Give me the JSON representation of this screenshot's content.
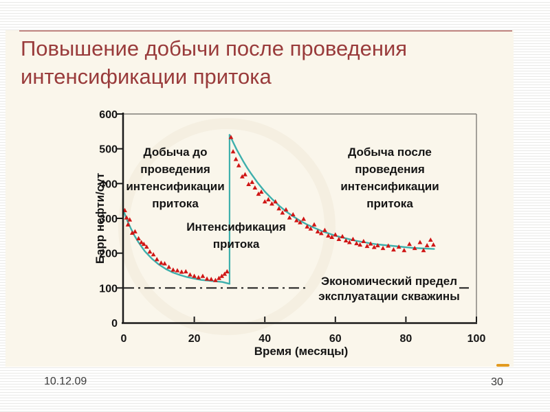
{
  "slide": {
    "title": "Повышение добычи после проведения интенсификации притока",
    "footer_date": "10.12.09",
    "page_number": "30"
  },
  "colors": {
    "title_maroon": "#993b3b",
    "slide_background": "#faf6eb",
    "trend_teal": "#3dafac",
    "marker_red": "#cf1515",
    "axis_black": "#1a1a1a",
    "box_gray": "#807d78",
    "orange_marker": "#e29a20"
  },
  "chart_data": {
    "type": "scatter",
    "title": "",
    "xlabel": "Время (месяцы)",
    "ylabel": "Барр нефти/сут",
    "xlim": [
      0,
      100
    ],
    "ylim": [
      0,
      600
    ],
    "x_ticks": [
      0,
      20,
      40,
      60,
      80,
      100
    ],
    "y_ticks": [
      0,
      100,
      200,
      300,
      400,
      500,
      600
    ],
    "grid": false,
    "legend": "none",
    "intervention_month": 30,
    "intervention_jump": {
      "from_value": 112,
      "to_value": 540
    },
    "economic_limit_value": 100,
    "annotations": {
      "before": "Добыча до\nпроведения\nинтенсификации\nпритока",
      "after": "Добыча после\nпроведения\nинтенсификации\nпритока",
      "intensification": "Интенсификация\nпритока",
      "economic_limit": "Экономический предел\nэксплуатации скважины"
    },
    "series": [
      {
        "name": "production-before-intensification",
        "marker": "triangle",
        "color": "#cf1515",
        "points": [
          [
            0.3,
            323
          ],
          [
            0.8,
            302
          ],
          [
            1.2,
            282
          ],
          [
            1.7,
            296
          ],
          [
            2.4,
            258
          ],
          [
            3.2,
            262
          ],
          [
            4.2,
            242
          ],
          [
            5.0,
            231
          ],
          [
            5.7,
            226
          ],
          [
            6.5,
            218
          ],
          [
            7.4,
            204
          ],
          [
            8.4,
            196
          ],
          [
            9.4,
            182
          ],
          [
            10.6,
            172
          ],
          [
            11.6,
            170
          ],
          [
            12.8,
            160
          ],
          [
            14.0,
            152
          ],
          [
            15.2,
            150
          ],
          [
            16.4,
            146
          ],
          [
            17.6,
            147
          ],
          [
            18.8,
            138
          ],
          [
            20.0,
            134
          ],
          [
            21.2,
            130
          ],
          [
            22.4,
            134
          ],
          [
            23.6,
            126
          ],
          [
            24.8,
            125
          ],
          [
            26.0,
            122
          ],
          [
            27.0,
            128
          ],
          [
            27.8,
            134
          ],
          [
            28.6,
            140
          ],
          [
            29.3,
            147
          ]
        ]
      },
      {
        "name": "production-after-intensification",
        "marker": "triangle",
        "color": "#cf1515",
        "points": [
          [
            30.4,
            533
          ],
          [
            31.0,
            492
          ],
          [
            31.8,
            470
          ],
          [
            32.6,
            452
          ],
          [
            33.6,
            420
          ],
          [
            34.4,
            426
          ],
          [
            35.4,
            398
          ],
          [
            36.4,
            404
          ],
          [
            37.2,
            388
          ],
          [
            38.2,
            370
          ],
          [
            39.0,
            376
          ],
          [
            40.0,
            348
          ],
          [
            41.0,
            354
          ],
          [
            42.0,
            342
          ],
          [
            43.0,
            348
          ],
          [
            44.0,
            328
          ],
          [
            45.0,
            316
          ],
          [
            46.0,
            325
          ],
          [
            47.0,
            302
          ],
          [
            48.0,
            311
          ],
          [
            49.0,
            294
          ],
          [
            50.0,
            288
          ],
          [
            51.0,
            298
          ],
          [
            52.0,
            276
          ],
          [
            53.0,
            270
          ],
          [
            54.0,
            282
          ],
          [
            55.0,
            262
          ],
          [
            56.0,
            257
          ],
          [
            57.0,
            266
          ],
          [
            58.0,
            250
          ],
          [
            59.0,
            246
          ],
          [
            60.0,
            253
          ],
          [
            61.0,
            240
          ],
          [
            62.0,
            248
          ],
          [
            63.0,
            236
          ],
          [
            64.0,
            231
          ],
          [
            65.0,
            240
          ],
          [
            66.0,
            228
          ],
          [
            67.0,
            224
          ],
          [
            68.0,
            234
          ],
          [
            69.0,
            220
          ],
          [
            70.0,
            227
          ],
          [
            71.0,
            217
          ],
          [
            72.0,
            222
          ],
          [
            73.5,
            214
          ],
          [
            75.0,
            221
          ],
          [
            76.5,
            210
          ],
          [
            78.0,
            218
          ],
          [
            79.5,
            208
          ],
          [
            81.0,
            226
          ],
          [
            82.5,
            214
          ],
          [
            84.0,
            231
          ],
          [
            85.0,
            208
          ],
          [
            86.0,
            222
          ],
          [
            87.0,
            238
          ],
          [
            87.8,
            224
          ]
        ]
      }
    ],
    "trends": [
      {
        "name": "decline-curve-before",
        "color": "#3dafac",
        "points": [
          [
            0,
            320
          ],
          [
            1,
            294
          ],
          [
            2,
            271
          ],
          [
            3,
            251
          ],
          [
            4,
            234
          ],
          [
            5,
            219
          ],
          [
            6,
            205
          ],
          [
            8,
            184
          ],
          [
            10,
            167
          ],
          [
            12,
            154
          ],
          [
            14,
            144
          ],
          [
            16,
            137
          ],
          [
            18,
            131
          ],
          [
            20,
            127
          ],
          [
            22,
            123
          ],
          [
            24,
            121
          ],
          [
            26,
            119
          ],
          [
            28,
            117
          ],
          [
            30,
            112
          ]
        ]
      },
      {
        "name": "decline-curve-after",
        "color": "#3dafac",
        "points": [
          [
            30,
            540
          ],
          [
            31,
            519
          ],
          [
            32,
            498
          ],
          [
            33,
            480
          ],
          [
            34,
            462
          ],
          [
            35,
            445
          ],
          [
            36,
            430
          ],
          [
            37,
            416
          ],
          [
            38,
            402
          ],
          [
            40,
            377
          ],
          [
            42,
            356
          ],
          [
            44,
            337
          ],
          [
            46,
            320
          ],
          [
            48,
            306
          ],
          [
            50,
            293
          ],
          [
            52,
            282
          ],
          [
            54,
            273
          ],
          [
            56,
            264
          ],
          [
            58,
            257
          ],
          [
            60,
            250
          ],
          [
            62,
            245
          ],
          [
            64,
            240
          ],
          [
            66,
            235
          ],
          [
            68,
            232
          ],
          [
            70,
            228
          ],
          [
            72,
            225
          ],
          [
            74,
            223
          ],
          [
            76,
            221
          ],
          [
            78,
            219
          ],
          [
            80,
            217
          ],
          [
            82,
            215
          ],
          [
            84,
            214
          ],
          [
            86,
            213
          ],
          [
            88,
            212
          ]
        ]
      }
    ]
  }
}
